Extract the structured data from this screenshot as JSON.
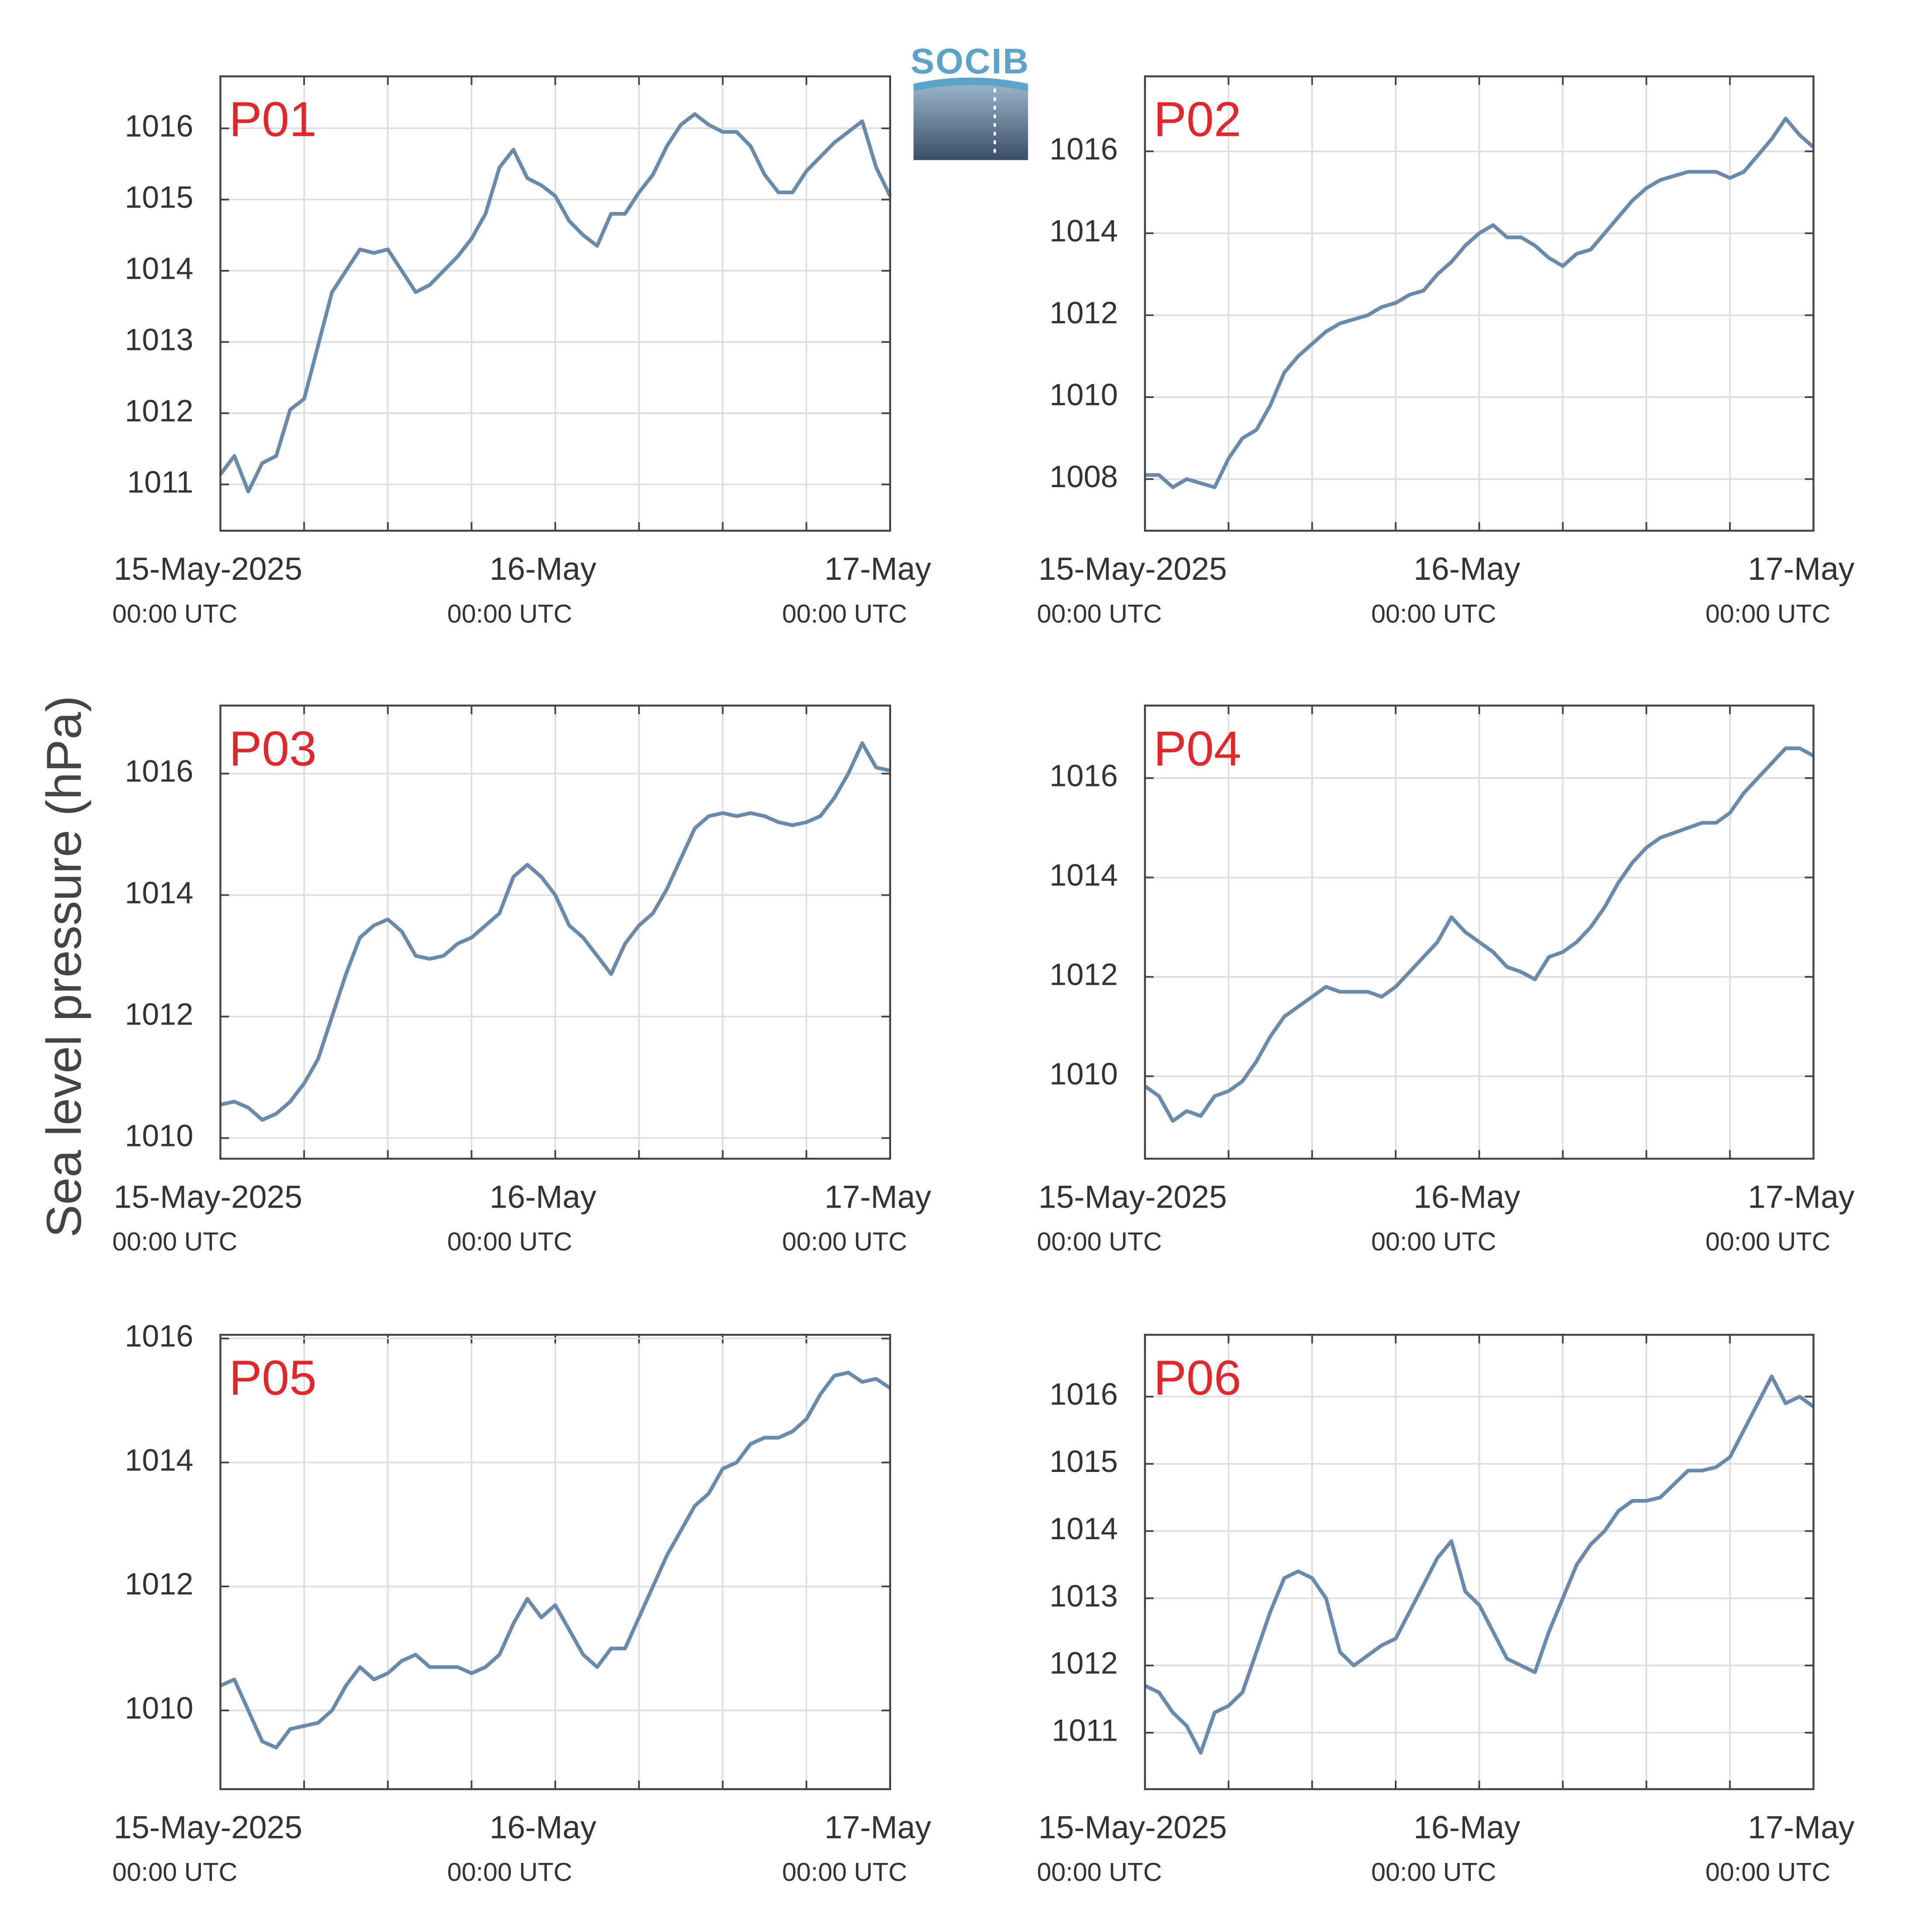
{
  "ylabel": "Sea level pressure (hPa)",
  "logo": "SOCIB",
  "chart_data": [
    {
      "type": "line",
      "title": "P01",
      "color": "#6a8aab",
      "grid": true,
      "x": [
        0,
        1,
        2,
        3,
        4,
        5,
        6,
        7,
        8,
        9,
        10,
        11,
        12,
        13,
        14,
        15,
        16,
        17,
        18,
        19,
        20,
        21,
        22,
        23,
        24,
        25,
        26,
        27,
        28,
        29,
        30,
        31,
        32,
        33,
        34,
        35,
        36,
        37,
        38,
        39,
        40,
        41,
        42,
        43,
        44,
        45,
        46,
        47,
        48
      ],
      "values": [
        1011.14,
        1011.4,
        1010.9,
        1011.3,
        1011.4,
        1012.05,
        1012.2,
        1012.95,
        1013.7,
        1014.0,
        1014.3,
        1014.25,
        1014.3,
        1014.0,
        1013.7,
        1013.8,
        1014.0,
        1014.2,
        1014.45,
        1014.8,
        1015.45,
        1015.7,
        1015.3,
        1015.2,
        1015.05,
        1014.7,
        1014.5,
        1014.35,
        1014.8,
        1014.8,
        1015.1,
        1015.35,
        1015.75,
        1016.05,
        1016.2,
        1016.05,
        1015.95,
        1015.95,
        1015.75,
        1015.35,
        1015.1,
        1015.1,
        1015.4,
        1015.6,
        1015.8,
        1015.95,
        1016.1,
        1015.45,
        1015.05
      ],
      "xlim": [
        0,
        48
      ],
      "xticks": [
        {
          "value": 0,
          "label": "15-May-2025",
          "sublabel": "00:00 UTC"
        },
        {
          "value": 24,
          "label": "16-May",
          "sublabel": "00:00 UTC"
        },
        {
          "value": 48,
          "label": "17-May",
          "sublabel": "00:00 UTC"
        }
      ],
      "xminorticks": [
        6,
        12,
        18,
        30,
        36,
        42
      ],
      "ylim": [
        1010.35,
        1016.73
      ],
      "yticks": [
        1011,
        1012,
        1013,
        1014,
        1015,
        1016
      ]
    },
    {
      "type": "line",
      "title": "P02",
      "color": "#6a8aab",
      "grid": true,
      "x": [
        0,
        1,
        2,
        3,
        4,
        5,
        6,
        7,
        8,
        9,
        10,
        11,
        12,
        13,
        14,
        15,
        16,
        17,
        18,
        19,
        20,
        21,
        22,
        23,
        24,
        25,
        26,
        27,
        28,
        29,
        30,
        31,
        32,
        33,
        34,
        35,
        36,
        37,
        38,
        39,
        40,
        41,
        42,
        43,
        44,
        45,
        46,
        47,
        48
      ],
      "values": [
        1008.1,
        1008.1,
        1007.8,
        1008.0,
        1007.9,
        1007.8,
        1008.5,
        1009.0,
        1009.2,
        1009.8,
        1010.6,
        1011.0,
        1011.3,
        1011.6,
        1011.8,
        1011.9,
        1012.0,
        1012.2,
        1012.3,
        1012.5,
        1012.6,
        1013.0,
        1013.3,
        1013.7,
        1014.0,
        1014.2,
        1013.9,
        1013.9,
        1013.7,
        1013.4,
        1013.2,
        1013.5,
        1013.6,
        1014.0,
        1014.4,
        1014.8,
        1015.1,
        1015.3,
        1015.4,
        1015.5,
        1015.5,
        1015.5,
        1015.35,
        1015.5,
        1015.9,
        1016.3,
        1016.8,
        1016.4,
        1016.1
      ],
      "xlim": [
        0,
        48
      ],
      "xticks": [
        {
          "value": 0,
          "label": "15-May-2025",
          "sublabel": "00:00 UTC"
        },
        {
          "value": 24,
          "label": "16-May",
          "sublabel": "00:00 UTC"
        },
        {
          "value": 48,
          "label": "17-May",
          "sublabel": "00:00 UTC"
        }
      ],
      "xminorticks": [
        6,
        12,
        18,
        30,
        36,
        42
      ],
      "ylim": [
        1006.74,
        1017.83
      ],
      "yticks": [
        1008,
        1010,
        1012,
        1014,
        1016
      ]
    },
    {
      "type": "line",
      "title": "P03",
      "color": "#6a8aab",
      "grid": true,
      "x": [
        0,
        1,
        2,
        3,
        4,
        5,
        6,
        7,
        8,
        9,
        10,
        11,
        12,
        13,
        14,
        15,
        16,
        17,
        18,
        19,
        20,
        21,
        22,
        23,
        24,
        25,
        26,
        27,
        28,
        29,
        30,
        31,
        32,
        33,
        34,
        35,
        36,
        37,
        38,
        39,
        40,
        41,
        42,
        43,
        44,
        45,
        46,
        47,
        48
      ],
      "values": [
        1010.55,
        1010.6,
        1010.5,
        1010.3,
        1010.4,
        1010.6,
        1010.9,
        1011.3,
        1012.0,
        1012.7,
        1013.3,
        1013.5,
        1013.6,
        1013.4,
        1013.0,
        1012.95,
        1013.0,
        1013.2,
        1013.3,
        1013.5,
        1013.7,
        1014.3,
        1014.5,
        1014.3,
        1014.0,
        1013.5,
        1013.3,
        1013.0,
        1012.7,
        1013.2,
        1013.5,
        1013.7,
        1014.1,
        1014.6,
        1015.1,
        1015.3,
        1015.35,
        1015.3,
        1015.35,
        1015.3,
        1015.2,
        1015.15,
        1015.2,
        1015.3,
        1015.6,
        1016.0,
        1016.5,
        1016.1,
        1016.05
      ],
      "xlim": [
        0,
        48
      ],
      "xticks": [
        {
          "value": 0,
          "label": "15-May-2025",
          "sublabel": "00:00 UTC"
        },
        {
          "value": 24,
          "label": "16-May",
          "sublabel": "00:00 UTC"
        },
        {
          "value": 48,
          "label": "17-May",
          "sublabel": "00:00 UTC"
        }
      ],
      "xminorticks": [
        6,
        12,
        18,
        30,
        36,
        42
      ],
      "ylim": [
        1009.66,
        1017.12
      ],
      "yticks": [
        1010,
        1012,
        1014,
        1016
      ]
    },
    {
      "type": "line",
      "title": "P04",
      "color": "#6a8aab",
      "grid": true,
      "x": [
        0,
        1,
        2,
        3,
        4,
        5,
        6,
        7,
        8,
        9,
        10,
        11,
        12,
        13,
        14,
        15,
        16,
        17,
        18,
        19,
        20,
        21,
        22,
        23,
        24,
        25,
        26,
        27,
        28,
        29,
        30,
        31,
        32,
        33,
        34,
        35,
        36,
        37,
        38,
        39,
        40,
        41,
        42,
        43,
        44,
        45,
        46,
        47,
        48
      ],
      "values": [
        1009.8,
        1009.6,
        1009.1,
        1009.3,
        1009.2,
        1009.6,
        1009.7,
        1009.9,
        1010.3,
        1010.8,
        1011.2,
        1011.4,
        1011.6,
        1011.8,
        1011.7,
        1011.7,
        1011.7,
        1011.6,
        1011.8,
        1012.1,
        1012.4,
        1012.7,
        1013.2,
        1012.9,
        1012.7,
        1012.5,
        1012.2,
        1012.1,
        1011.95,
        1012.4,
        1012.5,
        1012.7,
        1013.0,
        1013.4,
        1013.9,
        1014.3,
        1014.6,
        1014.8,
        1014.9,
        1015.0,
        1015.1,
        1015.1,
        1015.3,
        1015.7,
        1016.0,
        1016.3,
        1016.6,
        1016.6,
        1016.45
      ],
      "xlim": [
        0,
        48
      ],
      "xticks": [
        {
          "value": 0,
          "label": "15-May-2025",
          "sublabel": "00:00 UTC"
        },
        {
          "value": 24,
          "label": "16-May",
          "sublabel": "00:00 UTC"
        },
        {
          "value": 48,
          "label": "17-May",
          "sublabel": "00:00 UTC"
        }
      ],
      "xminorticks": [
        6,
        12,
        18,
        30,
        36,
        42
      ],
      "ylim": [
        1008.34,
        1017.46
      ],
      "yticks": [
        1010,
        1012,
        1014,
        1016
      ]
    },
    {
      "type": "line",
      "title": "P05",
      "color": "#6a8aab",
      "grid": true,
      "x": [
        0,
        1,
        2,
        3,
        4,
        5,
        6,
        7,
        8,
        9,
        10,
        11,
        12,
        13,
        14,
        15,
        16,
        17,
        18,
        19,
        20,
        21,
        22,
        23,
        24,
        25,
        26,
        27,
        28,
        29,
        30,
        31,
        32,
        33,
        34,
        35,
        36,
        37,
        38,
        39,
        40,
        41,
        42,
        43,
        44,
        45,
        46,
        47,
        48
      ],
      "values": [
        1010.4,
        1010.5,
        1010.0,
        1009.5,
        1009.4,
        1009.7,
        1009.75,
        1009.8,
        1010.0,
        1010.4,
        1010.7,
        1010.5,
        1010.6,
        1010.8,
        1010.9,
        1010.7,
        1010.7,
        1010.7,
        1010.6,
        1010.7,
        1010.9,
        1011.4,
        1011.8,
        1011.5,
        1011.7,
        1011.3,
        1010.9,
        1010.7,
        1011.0,
        1011.0,
        1011.5,
        1012.0,
        1012.5,
        1012.9,
        1013.3,
        1013.5,
        1013.9,
        1014.0,
        1014.3,
        1014.4,
        1014.4,
        1014.5,
        1014.7,
        1015.1,
        1015.4,
        1015.45,
        1015.3,
        1015.35,
        1015.2
      ],
      "xlim": [
        0,
        48
      ],
      "xticks": [
        {
          "value": 0,
          "label": "15-May-2025",
          "sublabel": "00:00 UTC"
        },
        {
          "value": 24,
          "label": "16-May",
          "sublabel": "00:00 UTC"
        },
        {
          "value": 48,
          "label": "17-May",
          "sublabel": "00:00 UTC"
        }
      ],
      "xminorticks": [
        6,
        12,
        18,
        30,
        36,
        42
      ],
      "ylim": [
        1008.73,
        1016.06
      ],
      "yticks": [
        1010,
        1012,
        1014,
        1016
      ]
    },
    {
      "type": "line",
      "title": "P06",
      "color": "#6a8aab",
      "grid": true,
      "x": [
        0,
        1,
        2,
        3,
        4,
        5,
        6,
        7,
        8,
        9,
        10,
        11,
        12,
        13,
        14,
        15,
        16,
        17,
        18,
        19,
        20,
        21,
        22,
        23,
        24,
        25,
        26,
        27,
        28,
        29,
        30,
        31,
        32,
        33,
        34,
        35,
        36,
        37,
        38,
        39,
        40,
        41,
        42,
        43,
        44,
        45,
        46,
        47,
        48
      ],
      "values": [
        1011.7,
        1011.6,
        1011.3,
        1011.1,
        1010.7,
        1011.3,
        1011.4,
        1011.6,
        1012.2,
        1012.8,
        1013.3,
        1013.4,
        1013.3,
        1013.0,
        1012.2,
        1012.0,
        1012.15,
        1012.3,
        1012.4,
        1012.8,
        1013.2,
        1013.6,
        1013.85,
        1013.1,
        1012.9,
        1012.5,
        1012.1,
        1012.0,
        1011.9,
        1012.5,
        1013.0,
        1013.5,
        1013.8,
        1014.0,
        1014.3,
        1014.45,
        1014.45,
        1014.5,
        1014.7,
        1014.9,
        1014.9,
        1014.95,
        1015.1,
        1015.5,
        1015.9,
        1016.3,
        1015.9,
        1016.0,
        1015.85
      ],
      "xlim": [
        0,
        48
      ],
      "xticks": [
        {
          "value": 0,
          "label": "15-May-2025",
          "sublabel": "00:00 UTC"
        },
        {
          "value": 24,
          "label": "16-May",
          "sublabel": "00:00 UTC"
        },
        {
          "value": 48,
          "label": "17-May",
          "sublabel": "00:00 UTC"
        }
      ],
      "xminorticks": [
        6,
        12,
        18,
        30,
        36,
        42
      ],
      "ylim": [
        1010.16,
        1016.92
      ],
      "yticks": [
        1011,
        1012,
        1013,
        1014,
        1015,
        1016
      ]
    }
  ]
}
